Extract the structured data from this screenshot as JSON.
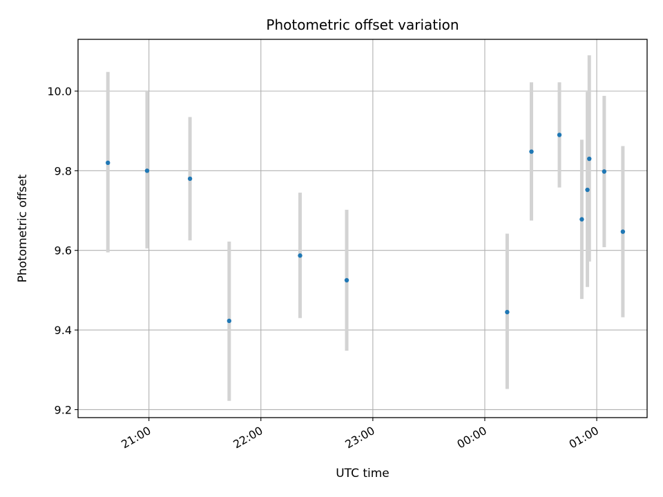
{
  "chart_data": {
    "type": "scatter",
    "title": "Photometric offset variation",
    "xlabel": "UTC time",
    "ylabel": "Photometric offset",
    "x_tick_labels": [
      "21:00",
      "22:00",
      "23:00",
      "00:00",
      "01:00"
    ],
    "y_tick_labels": [
      "9.2",
      "9.4",
      "9.6",
      "9.8",
      "10.0"
    ],
    "xlim": [
      "20:22",
      "01:27"
    ],
    "ylim": [
      9.18,
      10.13
    ],
    "grid": true,
    "colors": {
      "points": "#1f77b4",
      "errorbars": "#d3d3d3",
      "grid": "#b0b0b0",
      "axes": "#000000"
    },
    "points": [
      {
        "x": "20:38",
        "y": 9.82,
        "ymin": 9.595,
        "ymax": 10.048
      },
      {
        "x": "20:59",
        "y": 9.8,
        "ymin": 9.605,
        "ymax": 10.0
      },
      {
        "x": "21:22",
        "y": 9.78,
        "ymin": 9.625,
        "ymax": 9.935
      },
      {
        "x": "21:43",
        "y": 9.423,
        "ymin": 9.222,
        "ymax": 9.622
      },
      {
        "x": "22:21",
        "y": 9.587,
        "ymin": 9.43,
        "ymax": 9.745
      },
      {
        "x": "22:46",
        "y": 9.525,
        "ymin": 9.348,
        "ymax": 9.702
      },
      {
        "x": "00:12",
        "y": 9.445,
        "ymin": 9.252,
        "ymax": 9.642
      },
      {
        "x": "00:25",
        "y": 9.848,
        "ymin": 9.675,
        "ymax": 10.022
      },
      {
        "x": "00:40",
        "y": 9.89,
        "ymin": 9.758,
        "ymax": 10.022
      },
      {
        "x": "00:52",
        "y": 9.678,
        "ymin": 9.478,
        "ymax": 9.878
      },
      {
        "x": "00:55",
        "y": 9.752,
        "ymin": 9.508,
        "ymax": 9.998
      },
      {
        "x": "00:56",
        "y": 9.83,
        "ymin": 9.572,
        "ymax": 10.09
      },
      {
        "x": "01:04",
        "y": 9.798,
        "ymin": 9.608,
        "ymax": 9.988
      },
      {
        "x": "01:14",
        "y": 9.647,
        "ymin": 9.432,
        "ymax": 9.862
      }
    ]
  }
}
